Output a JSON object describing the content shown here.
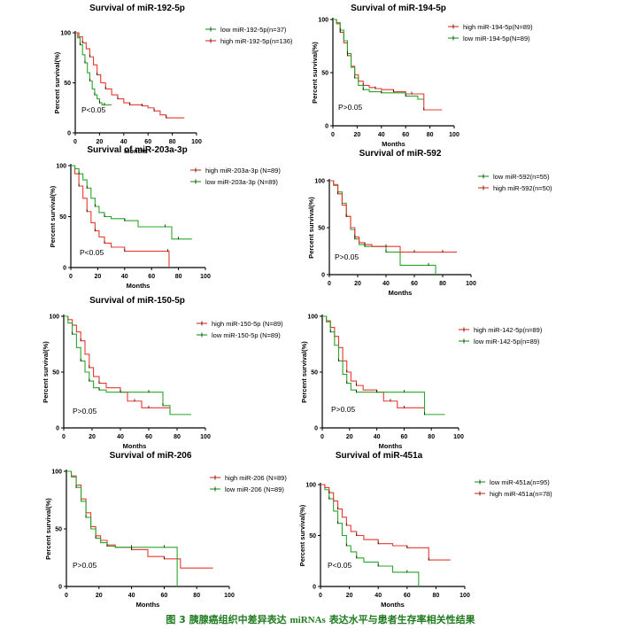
{
  "caption": {
    "prefix": "图",
    "number": "3",
    "text1": "胰腺癌组织中差异表达",
    "mirnas": "miRNAs",
    "text2": "表达水平与患者生存率相关性结果"
  },
  "colors": {
    "red": "#e8382f",
    "green": "#2aa52a",
    "black": "#111111"
  },
  "chart_data": [
    {
      "type": "line",
      "title": "Survival of miR-192-5p",
      "xlabel": "Months",
      "ylabel": "Percent survival(%)",
      "xlim": [
        0,
        100
      ],
      "ylim": [
        0,
        100
      ],
      "xticks": [
        0,
        20,
        40,
        60,
        80,
        100
      ],
      "yticks": [
        0,
        50,
        100
      ],
      "pvalue": "P<0.05",
      "series": [
        {
          "name": "low miR-192-5p(n=37)",
          "color": "green",
          "x": [
            0,
            2,
            4,
            6,
            8,
            10,
            12,
            14,
            16,
            18,
            20,
            22,
            24,
            26,
            30
          ],
          "y": [
            100,
            95,
            88,
            78,
            70,
            60,
            52,
            44,
            38,
            34,
            30,
            28,
            28,
            28,
            28
          ]
        },
        {
          "name": "high miR-192-5p(n=136)",
          "color": "red",
          "x": [
            0,
            3,
            6,
            9,
            12,
            15,
            18,
            21,
            25,
            30,
            35,
            40,
            45,
            50,
            55,
            60,
            65,
            70,
            75,
            80,
            90
          ],
          "y": [
            100,
            96,
            90,
            84,
            76,
            68,
            58,
            50,
            44,
            38,
            34,
            30,
            28,
            28,
            27,
            25,
            22,
            18,
            15,
            15,
            15
          ]
        }
      ]
    },
    {
      "type": "line",
      "title": "Survival of miR-194-5p",
      "xlabel": "Months",
      "ylabel": "Percent survival(%)",
      "xlim": [
        0,
        100
      ],
      "ylim": [
        0,
        100
      ],
      "xticks": [
        0,
        20,
        40,
        60,
        80,
        100
      ],
      "yticks": [
        0,
        50,
        100
      ],
      "pvalue": "P>0.05",
      "series": [
        {
          "name": "high miR-194-5p(N=89)",
          "color": "red",
          "x": [
            0,
            3,
            6,
            9,
            12,
            15,
            18,
            21,
            25,
            30,
            35,
            40,
            50,
            60,
            65,
            70,
            75,
            90
          ],
          "y": [
            100,
            96,
            88,
            78,
            66,
            56,
            48,
            42,
            38,
            36,
            35,
            34,
            32,
            30,
            30,
            30,
            15,
            15
          ]
        },
        {
          "name": "low miR-194-5p(N=89)",
          "color": "green",
          "x": [
            0,
            3,
            6,
            9,
            12,
            15,
            18,
            21,
            25,
            30,
            40,
            50,
            60,
            70,
            75
          ],
          "y": [
            100,
            97,
            90,
            80,
            68,
            55,
            45,
            38,
            34,
            32,
            31,
            31,
            28,
            25,
            25
          ]
        }
      ]
    },
    {
      "type": "line",
      "title": "Survival of miR-203a-3p",
      "xlabel": "Months",
      "ylabel": "Percent survival(%)",
      "xlim": [
        0,
        100
      ],
      "ylim": [
        0,
        100
      ],
      "xticks": [
        0,
        20,
        40,
        60,
        80,
        100
      ],
      "yticks": [
        0,
        50,
        100
      ],
      "pvalue": "P<0.05",
      "series": [
        {
          "name": "high miR-203a-3p (N=89)",
          "color": "red",
          "x": [
            0,
            3,
            6,
            9,
            12,
            15,
            18,
            21,
            25,
            30,
            40,
            60,
            72,
            73
          ],
          "y": [
            100,
            92,
            80,
            68,
            55,
            44,
            36,
            30,
            24,
            20,
            16,
            16,
            16,
            0
          ]
        },
        {
          "name": "low miR-203a-3p (N=89)",
          "color": "green",
          "x": [
            0,
            3,
            6,
            9,
            12,
            15,
            18,
            21,
            25,
            30,
            40,
            50,
            70,
            75,
            80,
            90
          ],
          "y": [
            100,
            97,
            92,
            86,
            78,
            68,
            60,
            54,
            50,
            48,
            46,
            40,
            40,
            28,
            28,
            28
          ]
        }
      ]
    },
    {
      "type": "line",
      "title": "Survival of miR-592",
      "xlabel": "Months",
      "ylabel": "Percent survival(%)",
      "xlim": [
        0,
        100
      ],
      "ylim": [
        0,
        100
      ],
      "xticks": [
        0,
        20,
        40,
        60,
        80,
        100
      ],
      "yticks": [
        0,
        50,
        100
      ],
      "pvalue": "P>0.05",
      "series": [
        {
          "name": "low miR-592(n=55)",
          "color": "green",
          "x": [
            0,
            3,
            6,
            9,
            12,
            15,
            18,
            21,
            25,
            30,
            40,
            50,
            70,
            75
          ],
          "y": [
            100,
            96,
            88,
            76,
            62,
            48,
            38,
            32,
            30,
            30,
            24,
            10,
            10,
            0
          ]
        },
        {
          "name": "high miR-592(n=50)",
          "color": "red",
          "x": [
            0,
            3,
            6,
            9,
            12,
            15,
            18,
            21,
            25,
            30,
            40,
            50,
            60,
            70,
            80,
            90
          ],
          "y": [
            100,
            95,
            86,
            74,
            62,
            50,
            40,
            34,
            32,
            30,
            30,
            24,
            24,
            24,
            24,
            24
          ]
        }
      ]
    },
    {
      "type": "line",
      "title": "Survival of miR-150-5p",
      "xlabel": "Months",
      "ylabel": "Percent survival(%)",
      "xlim": [
        0,
        100
      ],
      "ylim": [
        0,
        100
      ],
      "xticks": [
        0,
        20,
        40,
        60,
        80,
        100
      ],
      "yticks": [
        0,
        50,
        100
      ],
      "pvalue": "P>0.05",
      "series": [
        {
          "name": "high miR-150-5p (N=89)",
          "color": "red",
          "x": [
            0,
            3,
            6,
            9,
            12,
            15,
            18,
            21,
            25,
            30,
            40,
            45,
            50,
            55,
            60,
            70,
            75
          ],
          "y": [
            100,
            97,
            92,
            86,
            78,
            66,
            54,
            46,
            40,
            36,
            32,
            24,
            24,
            18,
            18,
            18,
            18
          ]
        },
        {
          "name": "low miR-150-5p (N=89)",
          "color": "green",
          "x": [
            0,
            3,
            6,
            9,
            12,
            15,
            18,
            21,
            25,
            30,
            40,
            50,
            60,
            65,
            70,
            75,
            90
          ],
          "y": [
            100,
            94,
            84,
            72,
            60,
            50,
            42,
            36,
            34,
            32,
            32,
            32,
            32,
            32,
            20,
            12,
            12
          ]
        }
      ]
    },
    {
      "type": "line",
      "title": "",
      "xlabel": "Months",
      "ylabel": "Percent survival(%)",
      "xlim": [
        0,
        100
      ],
      "ylim": [
        0,
        100
      ],
      "xticks": [
        0,
        20,
        40,
        60,
        80,
        100
      ],
      "yticks": [
        0,
        50,
        100
      ],
      "pvalue": "P>0.05",
      "series": [
        {
          "name": "high miR-142-5p(n=89)",
          "color": "red",
          "x": [
            0,
            3,
            6,
            9,
            12,
            15,
            18,
            21,
            25,
            30,
            40,
            45,
            50,
            55,
            60,
            70,
            75
          ],
          "y": [
            100,
            96,
            90,
            82,
            72,
            60,
            50,
            42,
            38,
            34,
            32,
            24,
            24,
            18,
            18,
            18,
            18
          ]
        },
        {
          "name": "low  miR-142-5p(n=89)",
          "color": "green",
          "x": [
            0,
            3,
            6,
            9,
            12,
            15,
            18,
            21,
            25,
            30,
            40,
            50,
            60,
            70,
            75,
            90
          ],
          "y": [
            100,
            95,
            86,
            74,
            60,
            48,
            40,
            34,
            32,
            32,
            32,
            32,
            32,
            32,
            12,
            12
          ]
        }
      ]
    },
    {
      "type": "line",
      "title": "Survival of miR-206",
      "xlabel": "Months",
      "ylabel": "Percent survival(%)",
      "xlim": [
        0,
        100
      ],
      "ylim": [
        0,
        100
      ],
      "xticks": [
        0,
        20,
        40,
        60,
        80,
        100
      ],
      "yticks": [
        0,
        50,
        100
      ],
      "pvalue": "P>0.05",
      "series": [
        {
          "name": "high miR-206  (N=89)",
          "color": "red",
          "x": [
            0,
            3,
            6,
            9,
            12,
            15,
            18,
            21,
            25,
            30,
            40,
            50,
            60,
            70,
            90
          ],
          "y": [
            100,
            96,
            88,
            76,
            64,
            52,
            44,
            40,
            36,
            34,
            32,
            26,
            24,
            16,
            16
          ]
        },
        {
          "name": "low miR-206  (N=89)",
          "color": "green",
          "x": [
            0,
            3,
            6,
            9,
            12,
            15,
            18,
            21,
            25,
            30,
            40,
            50,
            60,
            67,
            68
          ],
          "y": [
            100,
            95,
            86,
            74,
            60,
            50,
            42,
            38,
            35,
            34,
            34,
            34,
            34,
            34,
            0
          ]
        }
      ]
    },
    {
      "type": "line",
      "title": "Survival of miR-451a",
      "xlabel": "Months",
      "ylabel": "Percent survival(%)",
      "xlim": [
        0,
        100
      ],
      "ylim": [
        0,
        100
      ],
      "xticks": [
        0,
        20,
        40,
        60,
        80,
        100
      ],
      "yticks": [
        0,
        50,
        100
      ],
      "pvalue": "P<0.05",
      "series": [
        {
          "name": "low miR-451a(n=95)",
          "color": "green",
          "x": [
            0,
            3,
            6,
            9,
            12,
            15,
            18,
            21,
            25,
            30,
            40,
            50,
            60,
            67,
            68
          ],
          "y": [
            100,
            95,
            86,
            74,
            62,
            50,
            40,
            34,
            28,
            24,
            20,
            14,
            14,
            14,
            0
          ]
        },
        {
          "name": "high miR-451a(n=78)",
          "color": "red",
          "x": [
            0,
            3,
            6,
            9,
            12,
            15,
            18,
            21,
            25,
            30,
            40,
            50,
            60,
            70,
            75,
            90
          ],
          "y": [
            100,
            97,
            92,
            84,
            76,
            68,
            60,
            54,
            50,
            46,
            42,
            40,
            38,
            38,
            26,
            26
          ]
        }
      ]
    }
  ]
}
